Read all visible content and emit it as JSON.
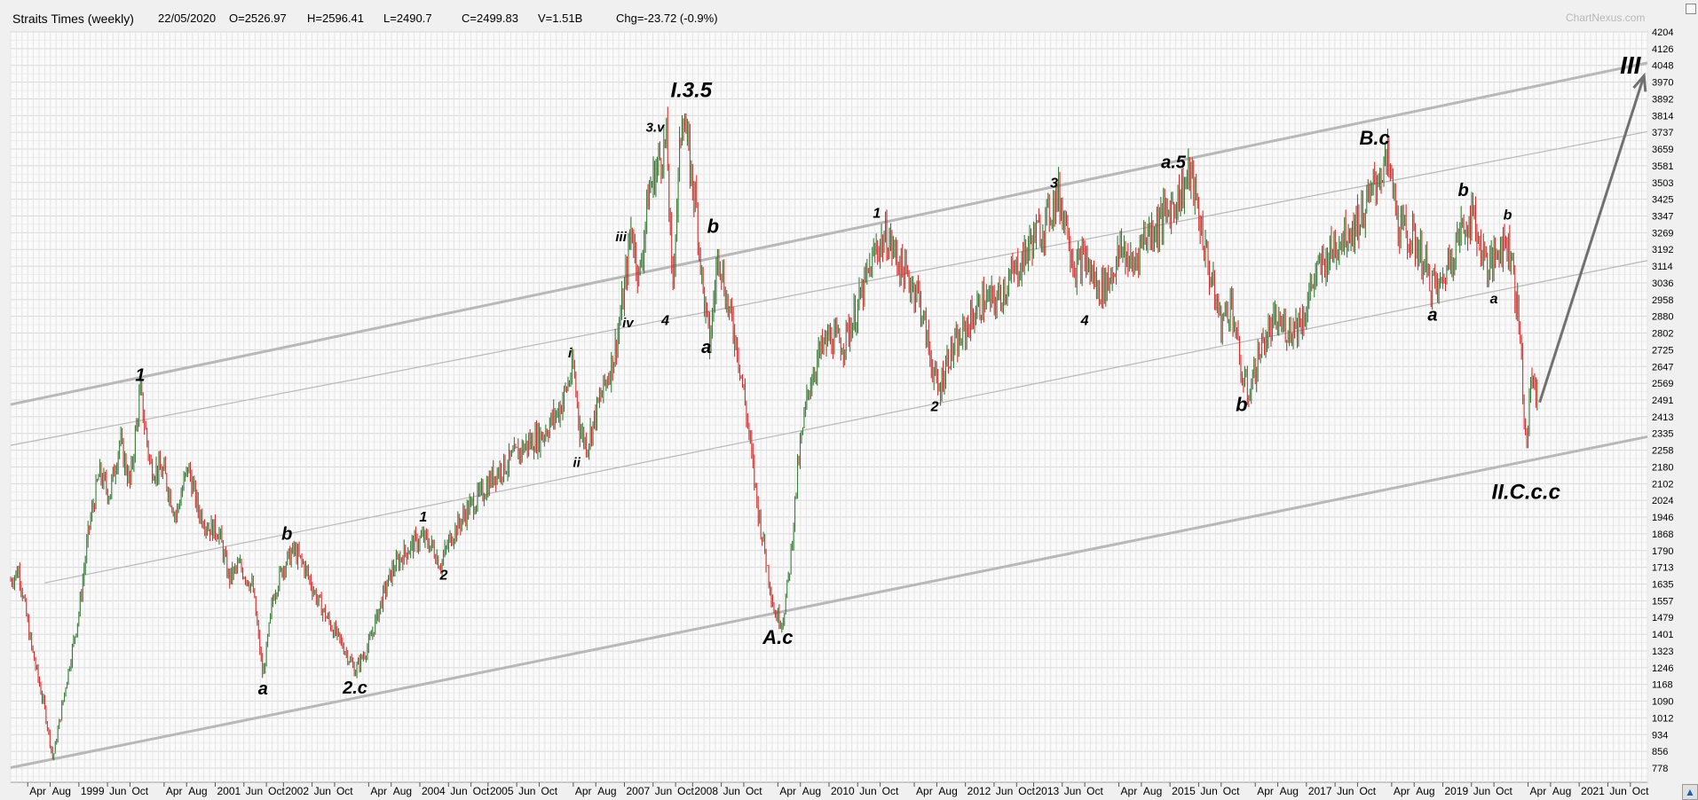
{
  "header": {
    "title": "Straits Times (weekly)",
    "date": "22/05/2020",
    "open": "O=2526.97",
    "high": "H=2596.41",
    "low": "L=2490.7",
    "close": "C=2499.83",
    "volume": "V=1.51B",
    "change": "Chg=-23.72 (-0.9%)",
    "watermark": "ChartNexus.com"
  },
  "colors": {
    "background": "#f0f0f0",
    "grid": "#d8d8d8",
    "down_candle": "#d03030",
    "up_candle": "#3a7a3a",
    "channel": "#b8b8b8",
    "arrow": "#707070"
  },
  "chart_data": {
    "type": "line",
    "title": "Straits Times (weekly)",
    "xlabel": "",
    "ylabel": "",
    "ylim": [
      740,
      4204
    ],
    "xlim": [
      1998.0,
      2022.0
    ],
    "grid": true,
    "y_ticks": [
      "4204",
      "4126",
      "4048",
      "3970",
      "3892",
      "3814",
      "3737",
      "3659",
      "3581",
      "3503",
      "3425",
      "3347",
      "3269",
      "3192",
      "3114",
      "3036",
      "2958",
      "2880",
      "2802",
      "2725",
      "2647",
      "2569",
      "2491",
      "2413",
      "2335",
      "2258",
      "2180",
      "2102",
      "2024",
      "1946",
      "1868",
      "1790",
      "1713",
      "1635",
      "1557",
      "1479",
      "1401",
      "1323",
      "1246",
      "1168",
      "1090",
      "1012",
      "934",
      "856",
      "778"
    ],
    "x_ticks": [
      {
        "label": "Apr",
        "x": 1998.25
      },
      {
        "label": "Aug",
        "x": 1998.58
      },
      {
        "label": "1999",
        "x": 1999.0
      },
      {
        "label": "Jun",
        "x": 1999.42
      },
      {
        "label": "Oct",
        "x": 1999.75
      },
      {
        "label": "Apr",
        "x": 2000.25
      },
      {
        "label": "Aug",
        "x": 2000.58
      },
      {
        "label": "2001",
        "x": 2001.0
      },
      {
        "label": "Jun",
        "x": 2001.42
      },
      {
        "label": "Oct",
        "x": 2001.75
      },
      {
        "label": "2002",
        "x": 2002.0
      },
      {
        "label": "Jun",
        "x": 2002.42
      },
      {
        "label": "Oct",
        "x": 2002.75
      },
      {
        "label": "Apr",
        "x": 2003.25
      },
      {
        "label": "Aug",
        "x": 2003.58
      },
      {
        "label": "2004",
        "x": 2004.0
      },
      {
        "label": "Jun",
        "x": 2004.42
      },
      {
        "label": "Oct",
        "x": 2004.75
      },
      {
        "label": "2005",
        "x": 2005.0
      },
      {
        "label": "Jun",
        "x": 2005.42
      },
      {
        "label": "Oct",
        "x": 2005.75
      },
      {
        "label": "Apr",
        "x": 2006.25
      },
      {
        "label": "Aug",
        "x": 2006.58
      },
      {
        "label": "2007",
        "x": 2007.0
      },
      {
        "label": "Jun",
        "x": 2007.42
      },
      {
        "label": "Oct",
        "x": 2007.75
      },
      {
        "label": "2008",
        "x": 2008.0
      },
      {
        "label": "Jun",
        "x": 2008.42
      },
      {
        "label": "Oct",
        "x": 2008.75
      },
      {
        "label": "Apr",
        "x": 2009.25
      },
      {
        "label": "Aug",
        "x": 2009.58
      },
      {
        "label": "2010",
        "x": 2010.0
      },
      {
        "label": "Jun",
        "x": 2010.42
      },
      {
        "label": "Oct",
        "x": 2010.75
      },
      {
        "label": "Apr",
        "x": 2011.25
      },
      {
        "label": "Aug",
        "x": 2011.58
      },
      {
        "label": "2012",
        "x": 2012.0
      },
      {
        "label": "Jun",
        "x": 2012.42
      },
      {
        "label": "Oct",
        "x": 2012.75
      },
      {
        "label": "2013",
        "x": 2013.0
      },
      {
        "label": "Jun",
        "x": 2013.42
      },
      {
        "label": "Oct",
        "x": 2013.75
      },
      {
        "label": "Apr",
        "x": 2014.25
      },
      {
        "label": "Aug",
        "x": 2014.58
      },
      {
        "label": "2015",
        "x": 2015.0
      },
      {
        "label": "Jun",
        "x": 2015.42
      },
      {
        "label": "Oct",
        "x": 2015.75
      },
      {
        "label": "Apr",
        "x": 2016.25
      },
      {
        "label": "Aug",
        "x": 2016.58
      },
      {
        "label": "2017",
        "x": 2017.0
      },
      {
        "label": "Jun",
        "x": 2017.42
      },
      {
        "label": "Oct",
        "x": 2017.75
      },
      {
        "label": "Apr",
        "x": 2018.25
      },
      {
        "label": "Aug",
        "x": 2018.58
      },
      {
        "label": "2019",
        "x": 2019.0
      },
      {
        "label": "Jun",
        "x": 2019.42
      },
      {
        "label": "Oct",
        "x": 2019.75
      },
      {
        "label": "Apr",
        "x": 2020.25
      },
      {
        "label": "Aug",
        "x": 2020.58
      },
      {
        "label": "2021",
        "x": 2021.0
      },
      {
        "label": "Jun",
        "x": 2021.42
      },
      {
        "label": "Oct",
        "x": 2021.75
      }
    ],
    "price_path": [
      [
        1998.0,
        1650
      ],
      [
        1998.12,
        1700
      ],
      [
        1998.3,
        1350
      ],
      [
        1998.5,
        1050
      ],
      [
        1998.62,
        820
      ],
      [
        1998.8,
        1150
      ],
      [
        1999.0,
        1500
      ],
      [
        1999.15,
        1900
      ],
      [
        1999.3,
        2150
      ],
      [
        1999.45,
        2050
      ],
      [
        1999.6,
        2300
      ],
      [
        1999.75,
        2100
      ],
      [
        1999.9,
        2530
      ],
      [
        2000.05,
        2180
      ],
      [
        2000.25,
        2150
      ],
      [
        2000.42,
        1950
      ],
      [
        2000.6,
        2180
      ],
      [
        2000.75,
        1980
      ],
      [
        2000.9,
        1900
      ],
      [
        2001.05,
        1880
      ],
      [
        2001.2,
        1660
      ],
      [
        2001.35,
        1720
      ],
      [
        2001.55,
        1620
      ],
      [
        2001.7,
        1200
      ],
      [
        2001.85,
        1580
      ],
      [
        2002.0,
        1720
      ],
      [
        2002.15,
        1790
      ],
      [
        2002.3,
        1720
      ],
      [
        2002.5,
        1560
      ],
      [
        2002.7,
        1440
      ],
      [
        2002.9,
        1330
      ],
      [
        2003.05,
        1230
      ],
      [
        2003.25,
        1350
      ],
      [
        2003.45,
        1570
      ],
      [
        2003.6,
        1700
      ],
      [
        2003.75,
        1770
      ],
      [
        2003.9,
        1820
      ],
      [
        2004.05,
        1850
      ],
      [
        2004.2,
        1800
      ],
      [
        2004.3,
        1720
      ],
      [
        2004.45,
        1850
      ],
      [
        2004.7,
        1980
      ],
      [
        2004.9,
        2050
      ],
      [
        2005.1,
        2150
      ],
      [
        2005.3,
        2200
      ],
      [
        2005.55,
        2280
      ],
      [
        2005.8,
        2330
      ],
      [
        2006.05,
        2450
      ],
      [
        2006.25,
        2640
      ],
      [
        2006.35,
        2350
      ],
      [
        2006.45,
        2280
      ],
      [
        2006.6,
        2450
      ],
      [
        2006.85,
        2700
      ],
      [
        2007.0,
        3000
      ],
      [
        2007.1,
        3300
      ],
      [
        2007.22,
        3050
      ],
      [
        2007.35,
        3450
      ],
      [
        2007.5,
        3600
      ],
      [
        2007.62,
        3700
      ],
      [
        2007.7,
        3000
      ],
      [
        2007.85,
        3870
      ],
      [
        2007.95,
        3600
      ],
      [
        2008.05,
        3400
      ],
      [
        2008.15,
        3000
      ],
      [
        2008.25,
        2750
      ],
      [
        2008.38,
        3200
      ],
      [
        2008.5,
        2950
      ],
      [
        2008.65,
        2750
      ],
      [
        2008.8,
        2400
      ],
      [
        2008.95,
        2000
      ],
      [
        2009.1,
        1700
      ],
      [
        2009.2,
        1500
      ],
      [
        2009.32,
        1460
      ],
      [
        2009.42,
        1700
      ],
      [
        2009.55,
        2200
      ],
      [
        2009.7,
        2550
      ],
      [
        2009.85,
        2700
      ],
      [
        2010.0,
        2780
      ],
      [
        2010.2,
        2750
      ],
      [
        2010.4,
        2900
      ],
      [
        2010.55,
        3050
      ],
      [
        2010.7,
        3200
      ],
      [
        2010.85,
        3250
      ],
      [
        2011.0,
        3150
      ],
      [
        2011.15,
        3050
      ],
      [
        2011.3,
        3000
      ],
      [
        2011.45,
        2750
      ],
      [
        2011.6,
        2520
      ],
      [
        2011.75,
        2700
      ],
      [
        2011.9,
        2750
      ],
      [
        2012.05,
        2850
      ],
      [
        2012.25,
        2950
      ],
      [
        2012.45,
        2950
      ],
      [
        2012.65,
        3050
      ],
      [
        2012.85,
        3150
      ],
      [
        2013.0,
        3250
      ],
      [
        2013.15,
        3300
      ],
      [
        2013.35,
        3450
      ],
      [
        2013.5,
        3300
      ],
      [
        2013.6,
        3100
      ],
      [
        2013.75,
        3150
      ],
      [
        2013.95,
        3000
      ],
      [
        2014.1,
        3050
      ],
      [
        2014.3,
        3200
      ],
      [
        2014.45,
        3100
      ],
      [
        2014.6,
        3250
      ],
      [
        2014.8,
        3300
      ],
      [
        2015.0,
        3380
      ],
      [
        2015.15,
        3450
      ],
      [
        2015.3,
        3550
      ],
      [
        2015.45,
        3300
      ],
      [
        2015.6,
        3050
      ],
      [
        2015.75,
        2850
      ],
      [
        2015.9,
        2950
      ],
      [
        2016.05,
        2600
      ],
      [
        2016.15,
        2520
      ],
      [
        2016.35,
        2750
      ],
      [
        2016.55,
        2850
      ],
      [
        2016.75,
        2820
      ],
      [
        2016.95,
        2870
      ],
      [
        2017.1,
        3050
      ],
      [
        2017.3,
        3150
      ],
      [
        2017.5,
        3250
      ],
      [
        2017.7,
        3300
      ],
      [
        2017.9,
        3400
      ],
      [
        2018.05,
        3540
      ],
      [
        2018.2,
        3600
      ],
      [
        2018.35,
        3300
      ],
      [
        2018.5,
        3250
      ],
      [
        2018.65,
        3200
      ],
      [
        2018.8,
        3050
      ],
      [
        2018.95,
        3000
      ],
      [
        2019.1,
        3150
      ],
      [
        2019.3,
        3300
      ],
      [
        2019.45,
        3350
      ],
      [
        2019.55,
        3200
      ],
      [
        2019.7,
        3100
      ],
      [
        2019.85,
        3230
      ],
      [
        2020.0,
        3200
      ],
      [
        2020.06,
        3000
      ],
      [
        2020.12,
        2850
      ],
      [
        2020.18,
        2520
      ],
      [
        2020.22,
        2250
      ],
      [
        2020.3,
        2600
      ],
      [
        2020.4,
        2500
      ]
    ],
    "channels": [
      {
        "from": [
          1998.0,
          2470
        ],
        "to": [
          2022.0,
          4060
        ],
        "style": "thick"
      },
      {
        "from": [
          1998.0,
          2280
        ],
        "to": [
          2022.0,
          3740
        ],
        "style": "thin"
      },
      {
        "from": [
          1998.5,
          1640
        ],
        "to": [
          2022.0,
          3140
        ],
        "style": "thin"
      },
      {
        "from": [
          1998.0,
          780
        ],
        "to": [
          2022.0,
          2320
        ],
        "style": "thick"
      }
    ],
    "arrow": {
      "from": [
        2020.42,
        2480
      ],
      "to": [
        2021.95,
        4000
      ]
    },
    "annotations": [
      {
        "text": "1",
        "x": 1999.9,
        "y": 2580,
        "size": 20
      },
      {
        "text": "a",
        "x": 2001.7,
        "y": 1120,
        "size": 20
      },
      {
        "text": "b",
        "x": 2002.05,
        "y": 1840,
        "size": 20
      },
      {
        "text": "2.c",
        "x": 2003.05,
        "y": 1125,
        "size": 20
      },
      {
        "text": "1",
        "x": 2004.05,
        "y": 1925,
        "size": 16
      },
      {
        "text": "2",
        "x": 2004.35,
        "y": 1655,
        "size": 16
      },
      {
        "text": "i",
        "x": 2006.2,
        "y": 2690,
        "size": 15
      },
      {
        "text": "ii",
        "x": 2006.3,
        "y": 2180,
        "size": 15
      },
      {
        "text": "iii",
        "x": 2006.95,
        "y": 3230,
        "size": 15
      },
      {
        "text": "iv",
        "x": 2007.05,
        "y": 2830,
        "size": 15
      },
      {
        "text": "3.v",
        "x": 2007.45,
        "y": 3740,
        "size": 15
      },
      {
        "text": "4",
        "x": 2007.6,
        "y": 2840,
        "size": 16
      },
      {
        "text": "I.3.5",
        "x": 2007.98,
        "y": 3900,
        "size": 24
      },
      {
        "text": "b",
        "x": 2008.3,
        "y": 3270,
        "size": 22
      },
      {
        "text": "a",
        "x": 2008.2,
        "y": 2710,
        "size": 20
      },
      {
        "text": "A.c",
        "x": 2009.25,
        "y": 1355,
        "size": 22
      },
      {
        "text": "1",
        "x": 2010.7,
        "y": 3340,
        "size": 16
      },
      {
        "text": "2",
        "x": 2011.55,
        "y": 2440,
        "size": 16
      },
      {
        "text": "3",
        "x": 2013.3,
        "y": 3480,
        "size": 16
      },
      {
        "text": "4",
        "x": 2013.75,
        "y": 2840,
        "size": 16
      },
      {
        "text": "a.5",
        "x": 2015.05,
        "y": 3570,
        "size": 20
      },
      {
        "text": "b",
        "x": 2016.05,
        "y": 2440,
        "size": 22
      },
      {
        "text": "B.c",
        "x": 2018.0,
        "y": 3680,
        "size": 22
      },
      {
        "text": "b",
        "x": 2019.3,
        "y": 3440,
        "size": 20
      },
      {
        "text": "a",
        "x": 2018.85,
        "y": 2860,
        "size": 20
      },
      {
        "text": "b",
        "x": 2019.95,
        "y": 3330,
        "size": 16
      },
      {
        "text": "a",
        "x": 2019.75,
        "y": 2940,
        "size": 16
      },
      {
        "text": "II.C.c.c",
        "x": 2020.22,
        "y": 2030,
        "size": 24
      },
      {
        "text": "III",
        "x": 2021.75,
        "y": 4010,
        "size": 28
      }
    ]
  }
}
